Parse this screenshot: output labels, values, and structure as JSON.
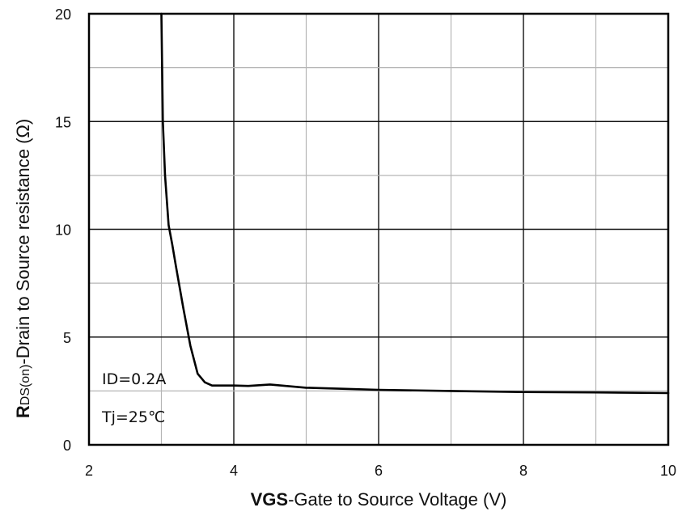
{
  "chart_data": {
    "type": "line",
    "xlabel_bold": "VGS",
    "xlabel_rest": "-Gate to Source Voltage (V)",
    "ylabel_bold": "R",
    "ylabel_sub": "DS(on)",
    "ylabel_rest": "-Drain to Source resistance (Ω)",
    "xlim": [
      2,
      10
    ],
    "ylim": [
      0,
      20
    ],
    "x_ticks": [
      "2",
      "4",
      "6",
      "8",
      "10"
    ],
    "y_ticks": [
      "0",
      "5",
      "10",
      "15",
      "20"
    ],
    "x_tick_values": [
      2,
      4,
      6,
      8,
      10
    ],
    "y_tick_values": [
      0,
      5,
      10,
      15,
      20
    ],
    "annotations": [
      "ID=0.2A",
      "Tj=25℃"
    ],
    "series": [
      {
        "x": [
          3.0,
          3.02,
          3.05,
          3.1,
          3.15,
          3.2,
          3.3,
          3.4,
          3.5,
          3.6,
          3.7,
          3.8,
          4.0,
          4.2,
          4.5,
          5.0,
          5.5,
          6.0,
          7.0,
          8.0,
          9.0,
          10.0
        ],
        "values": [
          20.0,
          15.0,
          12.5,
          10.2,
          9.3,
          8.3,
          6.4,
          4.6,
          3.3,
          2.9,
          2.75,
          2.75,
          2.75,
          2.73,
          2.8,
          2.65,
          2.6,
          2.55,
          2.5,
          2.45,
          2.43,
          2.4
        ]
      }
    ]
  }
}
